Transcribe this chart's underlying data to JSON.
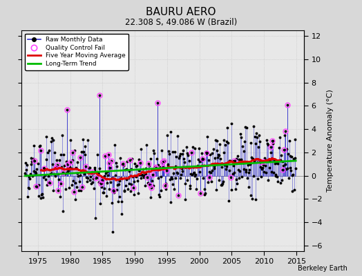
{
  "title": "BAURU AERO",
  "subtitle": "22.308 S, 49.086 W (Brazil)",
  "ylabel": "Temperature Anomaly (°C)",
  "credit": "Berkeley Earth",
  "xlim": [
    1972.5,
    2016.2
  ],
  "ylim": [
    -6.5,
    12.5
  ],
  "yticks": [
    -6,
    -4,
    -2,
    0,
    2,
    4,
    6,
    8,
    10,
    12
  ],
  "xticks": [
    1975,
    1980,
    1985,
    1990,
    1995,
    2000,
    2005,
    2010,
    2015
  ],
  "bg_color": "#d8d8d8",
  "plot_bg_color": "#e8e8e8",
  "raw_color": "#3333cc",
  "qc_color": "#ff44ff",
  "moving_avg_color": "#dd0000",
  "trend_color": "#00bb00",
  "seed": 15
}
